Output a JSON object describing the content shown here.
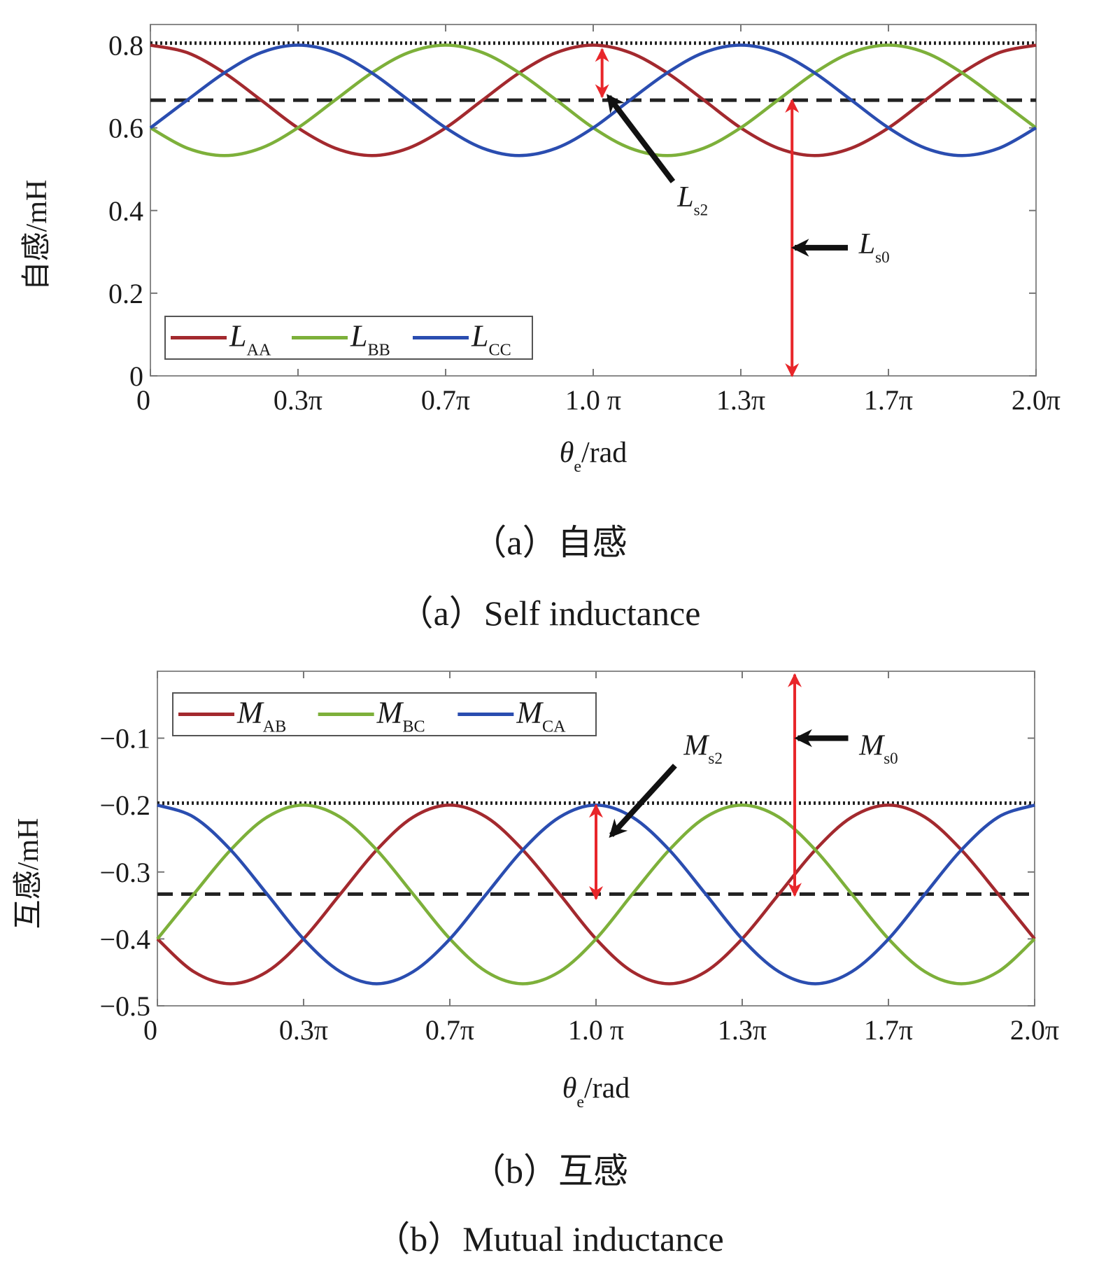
{
  "chart_data": [
    {
      "type": "line",
      "title": "",
      "caption_cn": "（a）自感",
      "caption_en": "（a）Self inductance",
      "xlabel": {
        "main": "θ",
        "sub": "e",
        "unit": "/rad"
      },
      "ylabel": "自感/mH",
      "xlim_pi": [
        0,
        2
      ],
      "ylim": [
        0,
        0.85
      ],
      "xticks_pi": [
        0,
        0.3333,
        0.6667,
        1,
        1.3333,
        1.6667,
        2
      ],
      "xtick_labels": [
        "0",
        "0.3π",
        "0.7π",
        "1.0 π",
        "1.3π",
        "1.7π",
        "2.0π"
      ],
      "yticks": [
        0,
        0.2,
        0.4,
        0.6,
        0.8
      ],
      "ytick_labels": [
        "0",
        "0.2",
        "0.4",
        "0.6",
        "0.8"
      ],
      "legend_position": "bottom-left",
      "x_pi": [
        0,
        0.083,
        0.167,
        0.25,
        0.333,
        0.417,
        0.5,
        0.583,
        0.667,
        0.75,
        0.833,
        0.917,
        1,
        1.083,
        1.167,
        1.25,
        1.333,
        1.417,
        1.5,
        1.583,
        1.667,
        1.75,
        1.833,
        1.917,
        2
      ],
      "series": [
        {
          "name": "L",
          "sub": "AA",
          "color": "#a3292e",
          "values": [
            0.8,
            0.782,
            0.733,
            0.667,
            0.6,
            0.551,
            0.533,
            0.551,
            0.6,
            0.667,
            0.733,
            0.782,
            0.8,
            0.782,
            0.733,
            0.667,
            0.6,
            0.551,
            0.533,
            0.551,
            0.6,
            0.667,
            0.733,
            0.782,
            0.8
          ]
        },
        {
          "name": "L",
          "sub": "BB",
          "color": "#7db03a",
          "values": [
            0.6,
            0.551,
            0.533,
            0.551,
            0.6,
            0.667,
            0.733,
            0.782,
            0.8,
            0.782,
            0.733,
            0.667,
            0.6,
            0.551,
            0.533,
            0.551,
            0.6,
            0.667,
            0.733,
            0.782,
            0.8,
            0.782,
            0.733,
            0.667,
            0.6
          ]
        },
        {
          "name": "L",
          "sub": "CC",
          "color": "#2a4db0",
          "values": [
            0.6,
            0.667,
            0.733,
            0.782,
            0.8,
            0.782,
            0.733,
            0.667,
            0.6,
            0.551,
            0.533,
            0.551,
            0.6,
            0.667,
            0.733,
            0.782,
            0.8,
            0.782,
            0.733,
            0.667,
            0.6,
            0.551,
            0.533,
            0.551,
            0.6
          ]
        }
      ],
      "reference_lines": [
        {
          "style": "dotted",
          "value": 0.805
        },
        {
          "style": "dashed",
          "value": 0.667
        }
      ],
      "annotations": [
        {
          "name": "L",
          "sub": "s2",
          "red_arrow_x_pi": 1.02,
          "red_arrow_from": 0.79,
          "red_arrow_to": 0.675,
          "black_from": [
            1.18,
            0.47
          ],
          "black_to": [
            1.035,
            0.675
          ],
          "label_at": [
            1.19,
            0.41
          ]
        },
        {
          "name": "L",
          "sub": "s0",
          "red_arrow_x_pi": 1.449,
          "red_arrow_from": 0.667,
          "red_arrow_to": 0.0,
          "black_from": [
            1.575,
            0.31
          ],
          "black_to": [
            1.455,
            0.31
          ],
          "label_at": [
            1.6,
            0.296
          ]
        }
      ]
    },
    {
      "type": "line",
      "title": "",
      "caption_cn": "（b）互感",
      "caption_en": "（b）Mutual inductance",
      "xlabel": {
        "main": "θ",
        "sub": "e",
        "unit": "/rad"
      },
      "ylabel": "互感/mH",
      "xlim_pi": [
        0,
        2
      ],
      "ylim": [
        -0.5,
        0
      ],
      "xticks_pi": [
        0,
        0.3333,
        0.6667,
        1,
        1.3333,
        1.6667,
        2
      ],
      "xtick_labels": [
        "0",
        "0.3π",
        "0.7π",
        "1.0 π",
        "1.3π",
        "1.7π",
        "2.0π"
      ],
      "yticks": [
        -0.5,
        -0.4,
        -0.3,
        -0.2,
        -0.1
      ],
      "ytick_labels": [
        "−0.5",
        "−0.4",
        "−0.3",
        "−0.2",
        "−0.1"
      ],
      "legend_position": "top-left",
      "x_pi": [
        0,
        0.083,
        0.167,
        0.25,
        0.333,
        0.417,
        0.5,
        0.583,
        0.667,
        0.75,
        0.833,
        0.917,
        1,
        1.083,
        1.167,
        1.25,
        1.333,
        1.417,
        1.5,
        1.583,
        1.667,
        1.75,
        1.833,
        1.917,
        2
      ],
      "series": [
        {
          "name": "M",
          "sub": "AB",
          "color": "#a3292e",
          "values": [
            -0.4,
            -0.449,
            -0.467,
            -0.449,
            -0.4,
            -0.333,
            -0.267,
            -0.218,
            -0.2,
            -0.218,
            -0.267,
            -0.333,
            -0.4,
            -0.449,
            -0.467,
            -0.449,
            -0.4,
            -0.333,
            -0.267,
            -0.218,
            -0.2,
            -0.218,
            -0.267,
            -0.333,
            -0.4
          ]
        },
        {
          "name": "M",
          "sub": "BC",
          "color": "#7db03a",
          "values": [
            -0.4,
            -0.333,
            -0.267,
            -0.218,
            -0.2,
            -0.218,
            -0.267,
            -0.333,
            -0.4,
            -0.449,
            -0.467,
            -0.449,
            -0.4,
            -0.333,
            -0.267,
            -0.218,
            -0.2,
            -0.218,
            -0.267,
            -0.333,
            -0.4,
            -0.449,
            -0.467,
            -0.449,
            -0.4
          ]
        },
        {
          "name": "M",
          "sub": "CA",
          "color": "#2a4db0",
          "values": [
            -0.2,
            -0.218,
            -0.267,
            -0.333,
            -0.4,
            -0.449,
            -0.467,
            -0.449,
            -0.4,
            -0.333,
            -0.267,
            -0.218,
            -0.2,
            -0.218,
            -0.267,
            -0.333,
            -0.4,
            -0.449,
            -0.467,
            -0.449,
            -0.4,
            -0.333,
            -0.267,
            -0.218,
            -0.2
          ]
        }
      ],
      "reference_lines": [
        {
          "style": "dotted",
          "value": -0.197
        },
        {
          "style": "dashed",
          "value": -0.333
        }
      ],
      "annotations": [
        {
          "name": "M",
          "sub": "s2",
          "red_arrow_x_pi": 1.0,
          "red_arrow_from": -0.2,
          "red_arrow_to": -0.34,
          "black_from": [
            1.18,
            -0.141
          ],
          "black_to": [
            1.035,
            -0.245
          ],
          "label_at": [
            1.2,
            -0.125
          ]
        },
        {
          "name": "M",
          "sub": "s0",
          "red_arrow_x_pi": 1.453,
          "red_arrow_from": -0.005,
          "red_arrow_to": -0.335,
          "black_from": [
            1.575,
            -0.1
          ],
          "black_to": [
            1.46,
            -0.1
          ],
          "label_at": [
            1.6,
            -0.125
          ]
        }
      ]
    }
  ]
}
